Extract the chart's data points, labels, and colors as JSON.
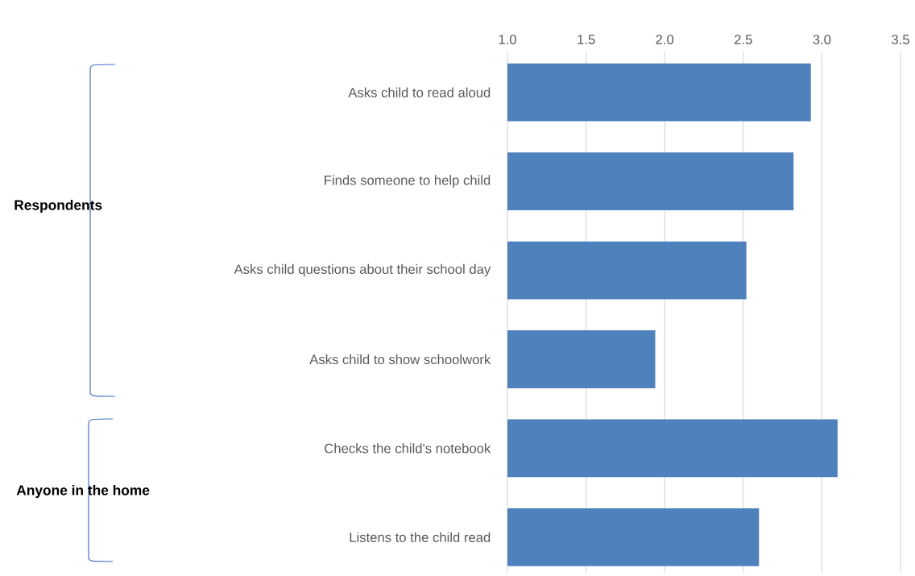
{
  "chart_data": {
    "type": "bar",
    "orientation": "horizontal",
    "categories": [
      "Asks child to read aloud",
      "Finds someone to help child",
      "Asks child questions about their school day",
      "Asks child to show schoolwork",
      "Checks the child's notebook",
      "Listens to the child read"
    ],
    "values": [
      2.93,
      2.82,
      2.52,
      1.94,
      3.1,
      2.6
    ],
    "color": "#4f81bd",
    "xlim": [
      1.0,
      3.5
    ],
    "xticks": [
      {
        "value": 1.0,
        "label": "1.0"
      },
      {
        "value": 1.5,
        "label": "1.5"
      },
      {
        "value": 2.0,
        "label": "2.0"
      },
      {
        "value": 2.5,
        "label": "2.5"
      },
      {
        "value": 3.0,
        "label": "3.0"
      },
      {
        "value": 3.5,
        "label": "3.5"
      }
    ],
    "grid": "x",
    "annotations": [
      "Respondents",
      "Anyone in the home"
    ]
  }
}
